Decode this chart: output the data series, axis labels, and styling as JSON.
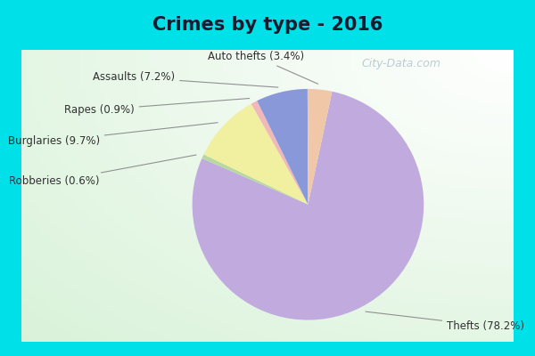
{
  "title": "Crimes by type - 2016",
  "title_fontsize": 15,
  "slices": [
    {
      "label": "Thefts (78.2%)",
      "value": 78.2,
      "color": "#c0aade"
    },
    {
      "label": "Robberies (0.6%)",
      "value": 0.6,
      "color": "#b8d8a0"
    },
    {
      "label": "Burglaries (9.7%)",
      "value": 9.7,
      "color": "#f0f0a0"
    },
    {
      "label": "Rapes (0.9%)",
      "value": 0.9,
      "color": "#f0b8b8"
    },
    {
      "label": "Assaults (7.2%)",
      "value": 7.2,
      "color": "#8898d8"
    },
    {
      "label": "Auto thefts (3.4%)",
      "value": 3.4,
      "color": "#f0c8a8"
    }
  ],
  "startangle": 78,
  "counterclock": false,
  "bg_border_color": "#00e0e8",
  "bg_main_top": "#e8f8f0",
  "bg_main_bottom": "#d0e8d8",
  "watermark": "City-Data.com",
  "watermark_color": "#a8bcc8",
  "label_fontsize": 8.5,
  "label_color": "#303030"
}
